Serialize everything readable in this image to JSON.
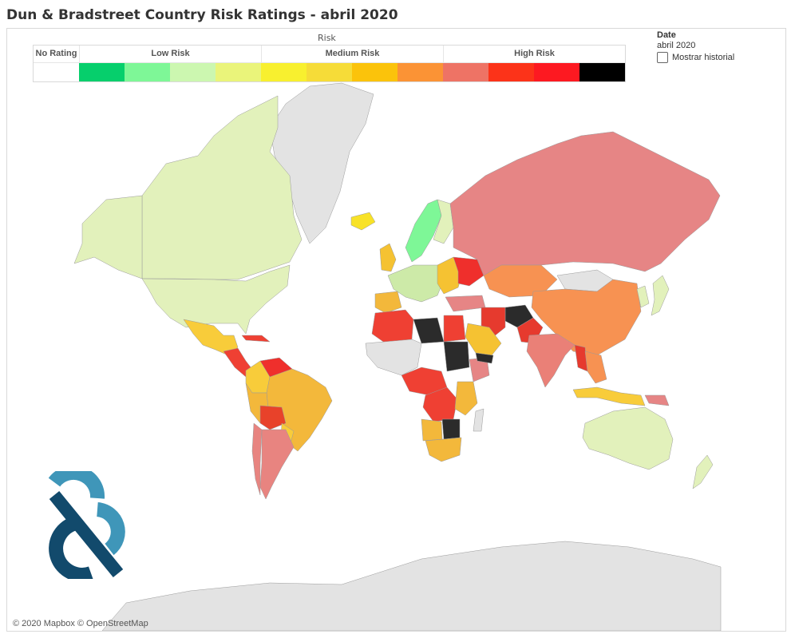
{
  "title": "Dun & Bradstreet Country Risk Ratings - abril 2020",
  "legend": {
    "caption": "Risk",
    "groups": [
      {
        "label": "No Rating",
        "colors": [
          "#ffffff"
        ]
      },
      {
        "label": "Low Risk",
        "colors": [
          "#06cf6c",
          "#7ef797",
          "#ccf7b0",
          "#eaf47a"
        ]
      },
      {
        "label": "Medium Risk",
        "colors": [
          "#f8f02f",
          "#f6dc38",
          "#fbc30b",
          "#fb9335"
        ]
      },
      {
        "label": "High Risk",
        "colors": [
          "#ee7365",
          "#fc3319",
          "#fd1921",
          "#000000"
        ]
      }
    ]
  },
  "date_filter": {
    "title": "Date",
    "value": "abril 2020",
    "history_label": "Mostrar historial",
    "history_checked": false
  },
  "attribution": "© 2020 Mapbox © OpenStreetMap",
  "colors": {
    "no_data": "#e3e3e3",
    "na": "#e2f1bb",
    "mexico": "#f8cc3a",
    "south_america": "#f3b83b",
    "venezuela": "#ef2f2c",
    "argentina": "#e88480",
    "bolivia": "#e8422a",
    "russia": "#e68585",
    "china": "#f79252",
    "india": "#ea8077",
    "australia": "#e2f1bb",
    "africa_black": "#2b2b2b",
    "africa_red": "#ef4033",
    "africa_orange": "#f3b83b",
    "europe_light": "#cdeaa8",
    "scandinavia": "#7ef797",
    "iceland": "#f8e227",
    "middle_east_red": "#e63a2e",
    "saudi": "#f5c232",
    "logo_light": "#3f96b9",
    "logo_dark": "#124a6c"
  },
  "regions": [
    "Canada",
    "United States",
    "Alaska",
    "Greenland",
    "Mexico",
    "Central America",
    "Cuba",
    "Venezuela",
    "Colombia",
    "Brazil",
    "Peru",
    "Bolivia",
    "Argentina",
    "Chile",
    "Paraguay",
    "Iceland",
    "United Kingdom",
    "Scandinavia",
    "Finland",
    "Western Europe",
    "Spain",
    "Eastern Europe",
    "Ukraine",
    "Turkey",
    "Russia",
    "Kazakhstan",
    "Mongolia",
    "China",
    "Japan",
    "Korea",
    "India",
    "Afghanistan",
    "Iran",
    "Pakistan",
    "Myanmar",
    "Southeast Asia",
    "Indonesia",
    "Papua New Guinea",
    "Australia",
    "New Zealand",
    "North Africa",
    "Libya",
    "Egypt",
    "Sudan",
    "Ethiopia",
    "West Africa",
    "Central Africa",
    "DR Congo",
    "East Africa",
    "Angola",
    "Southern Africa",
    "South Africa",
    "Madagascar",
    "Saudi Arabia",
    "Yemen",
    "Antarctica"
  ]
}
